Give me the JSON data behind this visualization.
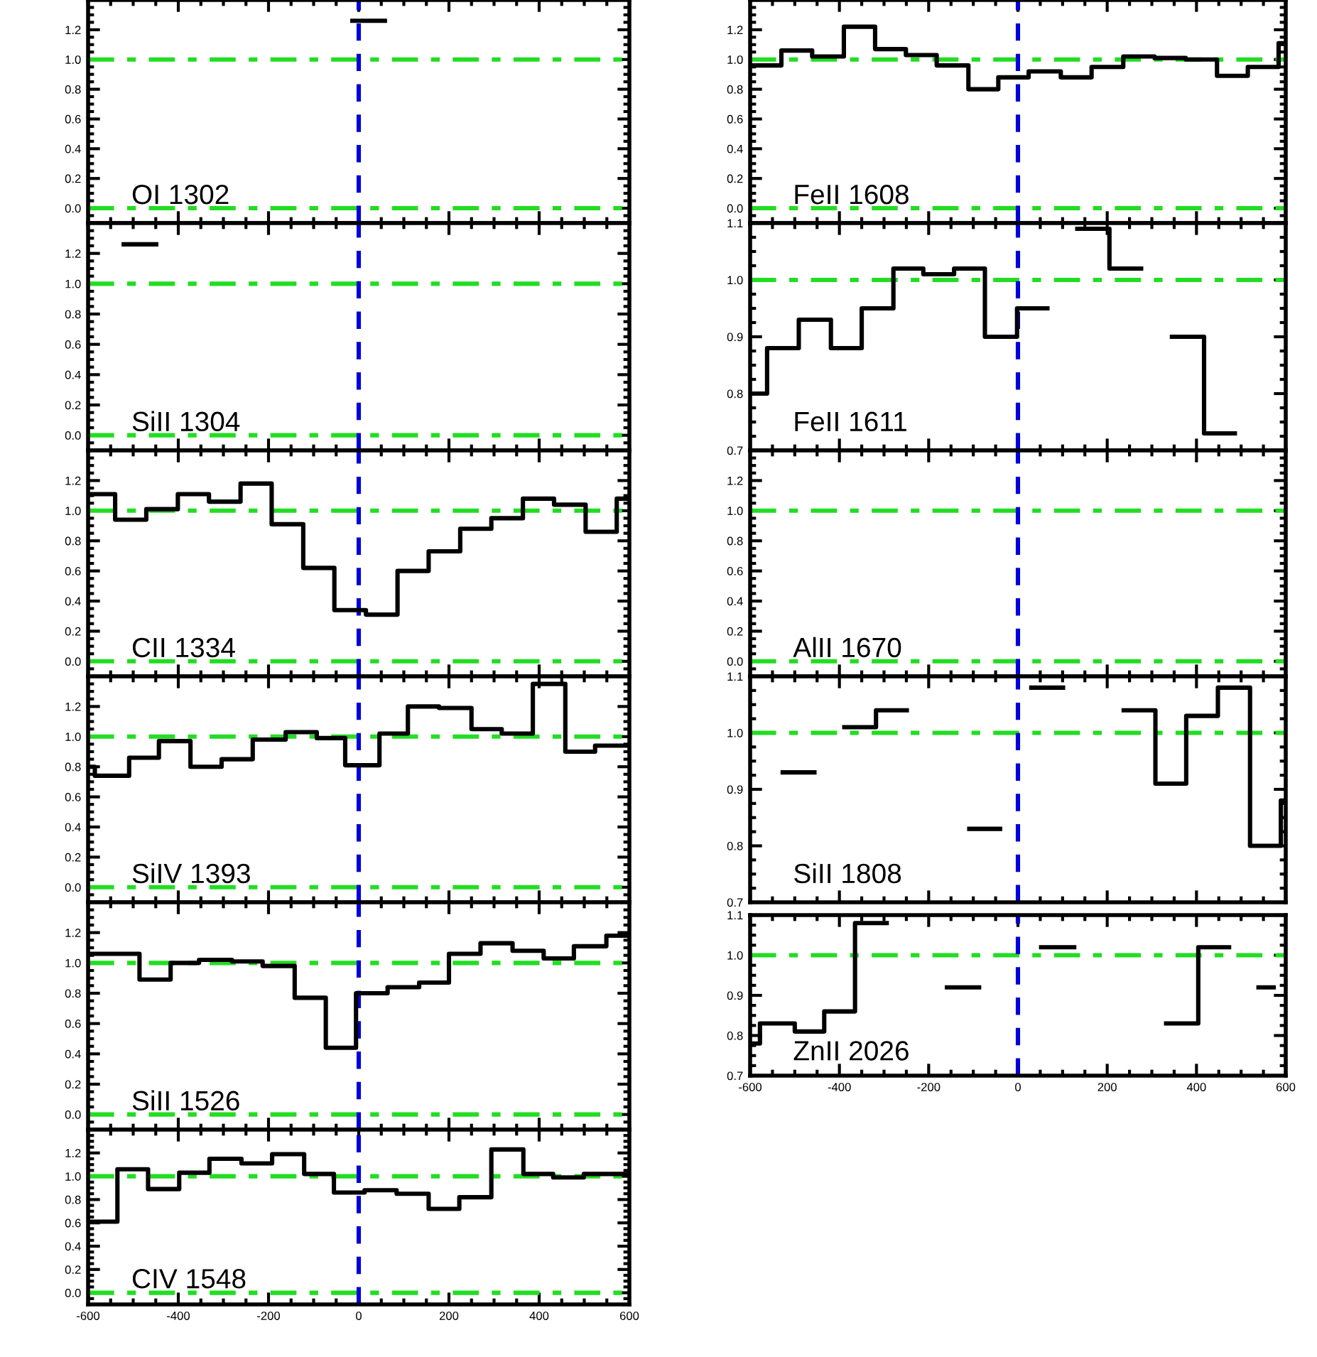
{
  "chart_data": [
    {
      "type": "step",
      "xlim": [
        -600,
        600
      ],
      "ylim": [
        -0.1,
        1.4
      ],
      "yticks": [
        {
          "value": 0,
          "label": "0.0"
        },
        {
          "value": 0.2,
          "label": "0.2"
        },
        {
          "value": 0.4,
          "label": "0.4"
        },
        {
          "value": 0.6,
          "label": "0.6"
        },
        {
          "value": 0.8,
          "label": "0.8"
        },
        {
          "value": 1,
          "label": "1.0"
        },
        {
          "value": 1.2,
          "label": "1.2"
        }
      ],
      "tick_labels": "y",
      "annotations": [
        "OI 1302"
      ],
      "series": [
        {
          "color": "#000000",
          "x": [
            -14,
            58
          ],
          "values": [
            1.26,
            1.26
          ]
        }
      ],
      "ref_lines": [
        {
          "axis": "y",
          "value": 0,
          "color": "#22dd22",
          "line_style": "dashdot"
        },
        {
          "axis": "y",
          "value": 1,
          "color": "#22dd22",
          "line_style": "dashdot"
        },
        {
          "axis": "x",
          "value": 0,
          "color": "#0000dd",
          "line_style": "dashed"
        }
      ]
    },
    {
      "type": "step",
      "xlim": [
        -600,
        600
      ],
      "ylim": [
        -0.1,
        1.4
      ],
      "yticks": [
        {
          "value": 0,
          "label": "0.0"
        },
        {
          "value": 0.2,
          "label": "0.2"
        },
        {
          "value": 0.4,
          "label": "0.4"
        },
        {
          "value": 0.6,
          "label": "0.6"
        },
        {
          "value": 0.8,
          "label": "0.8"
        },
        {
          "value": 1,
          "label": "1.0"
        },
        {
          "value": 1.2,
          "label": "1.2"
        }
      ],
      "tick_labels": "y",
      "annotations": [
        "SiII 1304"
      ],
      "series": [
        {
          "color": "#000000",
          "x": [
            -521,
            -449
          ],
          "values": [
            1.26,
            1.26
          ]
        }
      ],
      "ref_lines": [
        {
          "axis": "y",
          "value": 0,
          "color": "#22dd22",
          "line_style": "dashdot"
        },
        {
          "axis": "y",
          "value": 1,
          "color": "#22dd22",
          "line_style": "dashdot"
        },
        {
          "axis": "x",
          "value": 0,
          "color": "#0000dd",
          "line_style": "dashed"
        }
      ]
    },
    {
      "type": "step",
      "xlim": [
        -600,
        600
      ],
      "ylim": [
        -0.1,
        1.4
      ],
      "yticks": [
        {
          "value": 0,
          "label": "0.0"
        },
        {
          "value": 0.2,
          "label": "0.2"
        },
        {
          "value": 0.4,
          "label": "0.4"
        },
        {
          "value": 0.6,
          "label": "0.6"
        },
        {
          "value": 0.8,
          "label": "0.8"
        },
        {
          "value": 1,
          "label": "1.0"
        },
        {
          "value": 1.2,
          "label": "1.2"
        }
      ],
      "tick_labels": "y",
      "annotations": [
        "CII 1334"
      ],
      "series": [
        {
          "color": "#000000",
          "x": [
            -600,
            -540,
            -471,
            -401,
            -332,
            -262,
            -193,
            -123,
            -54,
            16,
            86,
            155,
            225,
            294,
            364,
            433,
            503,
            572,
            600
          ],
          "values": [
            1.11,
            0.94,
            1.01,
            1.11,
            1.06,
            1.18,
            0.91,
            0.62,
            0.34,
            0.31,
            0.6,
            0.73,
            0.88,
            0.95,
            1.08,
            1.04,
            0.86,
            1.08,
            1.08
          ]
        }
      ],
      "ref_lines": [
        {
          "axis": "y",
          "value": 0,
          "color": "#22dd22",
          "line_style": "dashdot"
        },
        {
          "axis": "y",
          "value": 1,
          "color": "#22dd22",
          "line_style": "dashdot"
        },
        {
          "axis": "x",
          "value": 0,
          "color": "#0000dd",
          "line_style": "dashed"
        }
      ]
    },
    {
      "type": "step",
      "xlim": [
        -600,
        600
      ],
      "ylim": [
        -0.1,
        1.4
      ],
      "yticks": [
        {
          "value": 0,
          "label": "0.0"
        },
        {
          "value": 0.2,
          "label": "0.2"
        },
        {
          "value": 0.4,
          "label": "0.4"
        },
        {
          "value": 0.6,
          "label": "0.6"
        },
        {
          "value": 0.8,
          "label": "0.8"
        },
        {
          "value": 1,
          "label": "1.0"
        },
        {
          "value": 1.2,
          "label": "1.2"
        }
      ],
      "tick_labels": "y",
      "annotations": [
        "SiIV 1393"
      ],
      "series": [
        {
          "color": "#000000",
          "x": [
            -600,
            -585,
            -509,
            -443,
            -373,
            -304,
            -235,
            -162,
            -93,
            -30,
            46,
            109,
            178,
            250,
            317,
            386,
            458,
            524,
            600
          ],
          "values": [
            0.8,
            0.74,
            0.86,
            0.97,
            0.8,
            0.85,
            0.98,
            1.03,
            0.99,
            0.81,
            1.02,
            1.2,
            1.19,
            1.05,
            1.02,
            1.35,
            0.9,
            0.94,
            0.94
          ]
        }
      ],
      "ref_lines": [
        {
          "axis": "y",
          "value": 0,
          "color": "#22dd22",
          "line_style": "dashdot"
        },
        {
          "axis": "y",
          "value": 1,
          "color": "#22dd22",
          "line_style": "dashdot"
        },
        {
          "axis": "x",
          "value": 0,
          "color": "#0000dd",
          "line_style": "dashed"
        }
      ]
    },
    {
      "type": "step",
      "xlim": [
        -600,
        600
      ],
      "ylim": [
        -0.1,
        1.4
      ],
      "yticks": [
        {
          "value": 0,
          "label": "0.0"
        },
        {
          "value": 0.2,
          "label": "0.2"
        },
        {
          "value": 0.4,
          "label": "0.4"
        },
        {
          "value": 0.6,
          "label": "0.6"
        },
        {
          "value": 0.8,
          "label": "0.8"
        },
        {
          "value": 1,
          "label": "1.0"
        },
        {
          "value": 1.2,
          "label": "1.2"
        }
      ],
      "tick_labels": "y",
      "annotations": [
        "SiII 1526"
      ],
      "series": [
        {
          "color": "#000000",
          "x": [
            -600,
            -486,
            -417,
            -354,
            -281,
            -213,
            -142,
            -73,
            -6,
            64,
            134,
            200,
            270,
            341,
            410,
            477,
            549,
            600
          ],
          "values": [
            1.06,
            0.89,
            1.0,
            1.02,
            1.01,
            0.98,
            0.77,
            0.44,
            0.8,
            0.84,
            0.87,
            1.06,
            1.13,
            1.08,
            1.03,
            1.11,
            1.18,
            1.18
          ]
        }
      ],
      "ref_lines": [
        {
          "axis": "y",
          "value": 0,
          "color": "#22dd22",
          "line_style": "dashdot"
        },
        {
          "axis": "y",
          "value": 1,
          "color": "#22dd22",
          "line_style": "dashdot"
        },
        {
          "axis": "x",
          "value": 0,
          "color": "#0000dd",
          "line_style": "dashed"
        }
      ]
    },
    {
      "type": "step",
      "xlim": [
        -600,
        600
      ],
      "ylim": [
        -0.1,
        1.4
      ],
      "xticks": [
        -600,
        -400,
        -200,
        0,
        200,
        400,
        600
      ],
      "yticks": [
        {
          "value": 0,
          "label": "0.0"
        },
        {
          "value": 0.2,
          "label": "0.2"
        },
        {
          "value": 0.4,
          "label": "0.4"
        },
        {
          "value": 0.6,
          "label": "0.6"
        },
        {
          "value": 0.8,
          "label": "0.8"
        },
        {
          "value": 1,
          "label": "1.0"
        },
        {
          "value": 1.2,
          "label": "1.2"
        }
      ],
      "annotations": [
        "CIV 1548"
      ],
      "series": [
        {
          "color": "#000000",
          "x": [
            -600,
            -535,
            -467,
            -398,
            -331,
            -260,
            -192,
            -121,
            -55,
            13,
            84,
            155,
            223,
            294,
            365,
            431,
            499,
            600
          ],
          "values": [
            0.61,
            1.06,
            0.89,
            1.03,
            1.15,
            1.11,
            1.19,
            1.02,
            0.86,
            0.88,
            0.85,
            0.72,
            0.82,
            1.23,
            1.02,
            0.99,
            1.02,
            1.02
          ]
        }
      ],
      "ref_lines": [
        {
          "axis": "y",
          "value": 0,
          "color": "#22dd22",
          "line_style": "dashdot"
        },
        {
          "axis": "y",
          "value": 1,
          "color": "#22dd22",
          "line_style": "dashdot"
        },
        {
          "axis": "x",
          "value": 0,
          "color": "#0000dd",
          "line_style": "dashed"
        }
      ]
    },
    {
      "type": "step",
      "xlim": [
        -600,
        600
      ],
      "ylim": [
        -0.1,
        1.4
      ],
      "yticks": [
        {
          "value": 0,
          "label": "0.0"
        },
        {
          "value": 0.2,
          "label": "0.2"
        },
        {
          "value": 0.4,
          "label": "0.4"
        },
        {
          "value": 0.6,
          "label": "0.6"
        },
        {
          "value": 0.8,
          "label": "0.8"
        },
        {
          "value": 1,
          "label": "1.0"
        },
        {
          "value": 1.2,
          "label": "1.2"
        }
      ],
      "tick_labels": "y",
      "annotations": [
        "FeII 1608"
      ],
      "series": [
        {
          "color": "#000000",
          "x": [
            -600,
            -530,
            -461,
            -390,
            -320,
            -251,
            -182,
            -111,
            -44,
            24,
            96,
            165,
            236,
            306,
            376,
            446,
            515,
            584,
            600
          ],
          "values": [
            0.96,
            1.06,
            1.02,
            1.22,
            1.07,
            1.03,
            0.96,
            0.8,
            0.88,
            0.92,
            0.88,
            0.95,
            1.02,
            1.01,
            1.0,
            0.89,
            0.95,
            1.11,
            1.11
          ]
        }
      ],
      "ref_lines": [
        {
          "axis": "y",
          "value": 0,
          "color": "#22dd22",
          "line_style": "dashdot"
        },
        {
          "axis": "y",
          "value": 1,
          "color": "#22dd22",
          "line_style": "dashdot"
        },
        {
          "axis": "x",
          "value": 0,
          "color": "#0000dd",
          "line_style": "dashed"
        }
      ]
    },
    {
      "type": "step",
      "xlim": [
        -600,
        600
      ],
      "ylim": [
        0.7,
        1.1
      ],
      "yticks": [
        0.7,
        0.8,
        0.9,
        {
          "value": 1,
          "label": "1.0"
        },
        1.1
      ],
      "tick_labels": "y",
      "annotations": [
        "FeII 1611"
      ],
      "series": [
        {
          "color": "#000000",
          "x": [
            -600,
            -562,
            -491,
            -419,
            -350,
            -279,
            -212,
            -143,
            -74,
            -2,
            66,
            133,
            205,
            276,
            345,
            417,
            486
          ],
          "values": [
            0.8,
            0.88,
            0.93,
            0.88,
            0.95,
            1.02,
            1.01,
            1.02,
            0.9,
            0.95,
            null,
            1.09,
            1.02,
            null,
            0.9,
            0.73,
            0.73
          ]
        }
      ],
      "ref_lines": [
        {
          "axis": "y",
          "value": 1,
          "color": "#22dd22",
          "line_style": "dashdot"
        },
        {
          "axis": "x",
          "value": 0,
          "color": "#0000dd",
          "line_style": "dashed"
        }
      ]
    },
    {
      "type": "step",
      "xlim": [
        -600,
        600
      ],
      "ylim": [
        -0.1,
        1.4
      ],
      "yticks": [
        {
          "value": 0,
          "label": "0.0"
        },
        {
          "value": 0.2,
          "label": "0.2"
        },
        {
          "value": 0.4,
          "label": "0.4"
        },
        {
          "value": 0.6,
          "label": "0.6"
        },
        {
          "value": 0.8,
          "label": "0.8"
        },
        {
          "value": 1,
          "label": "1.0"
        },
        {
          "value": 1.2,
          "label": "1.2"
        }
      ],
      "tick_labels": "y",
      "annotations": [
        "AlII 1670"
      ],
      "ref_lines": [
        {
          "axis": "y",
          "value": 0,
          "color": "#22dd22",
          "line_style": "dashdot"
        },
        {
          "axis": "y",
          "value": 1,
          "color": "#22dd22",
          "line_style": "dashdot"
        },
        {
          "axis": "x",
          "value": 0,
          "color": "#0000dd",
          "line_style": "dashed"
        }
      ]
    },
    {
      "type": "step",
      "xlim": [
        -600,
        600
      ],
      "ylim": [
        0.7,
        1.1
      ],
      "yticks": [
        0.7,
        0.8,
        0.9,
        {
          "value": 1,
          "label": "1.0"
        },
        1.1
      ],
      "tick_labels": "y",
      "annotations": [
        "SiII 1808"
      ],
      "series": [
        {
          "color": "#000000",
          "x": [
            -527,
            -456,
            -389,
            -318,
            -249,
            -177,
            -109,
            -40,
            30,
            101,
            237,
            308,
            377,
            448,
            520,
            589,
            600
          ],
          "values": [
            0.93,
            null,
            1.01,
            1.04,
            null,
            null,
            0.83,
            null,
            1.08,
            null,
            1.04,
            0.91,
            1.03,
            1.08,
            0.8,
            0.88,
            0.88
          ]
        }
      ],
      "ref_lines": [
        {
          "axis": "y",
          "value": 1,
          "color": "#22dd22",
          "line_style": "dashdot"
        },
        {
          "axis": "x",
          "value": 0,
          "color": "#0000dd",
          "line_style": "dashed"
        }
      ]
    },
    {
      "type": "step",
      "xlim": [
        -600,
        600
      ],
      "ylim": [
        0.7,
        1.1
      ],
      "xticks": [
        -600,
        -400,
        -200,
        0,
        200,
        400,
        600
      ],
      "yticks": [
        0.7,
        0.8,
        0.9,
        {
          "value": 1,
          "label": "1.0"
        },
        1.1
      ],
      "annotations": [
        "ZnII 2026"
      ],
      "series": [
        {
          "color": "#000000",
          "x": [
            -600,
            -578,
            -500,
            -434,
            -365,
            -294,
            -228,
            -159,
            -87,
            52,
            126,
            193,
            332,
            404,
            473,
            539,
            573
          ],
          "values": [
            0.78,
            0.83,
            0.81,
            0.86,
            1.08,
            null,
            null,
            0.92,
            null,
            1.02,
            null,
            null,
            0.83,
            1.02,
            null,
            0.92,
            0.92
          ]
        }
      ],
      "ref_lines": [
        {
          "axis": "y",
          "value": 1,
          "color": "#22dd22",
          "line_style": "dashdot"
        },
        {
          "axis": "x",
          "value": 0,
          "color": "#0000dd",
          "line_style": "dashed"
        }
      ]
    }
  ]
}
